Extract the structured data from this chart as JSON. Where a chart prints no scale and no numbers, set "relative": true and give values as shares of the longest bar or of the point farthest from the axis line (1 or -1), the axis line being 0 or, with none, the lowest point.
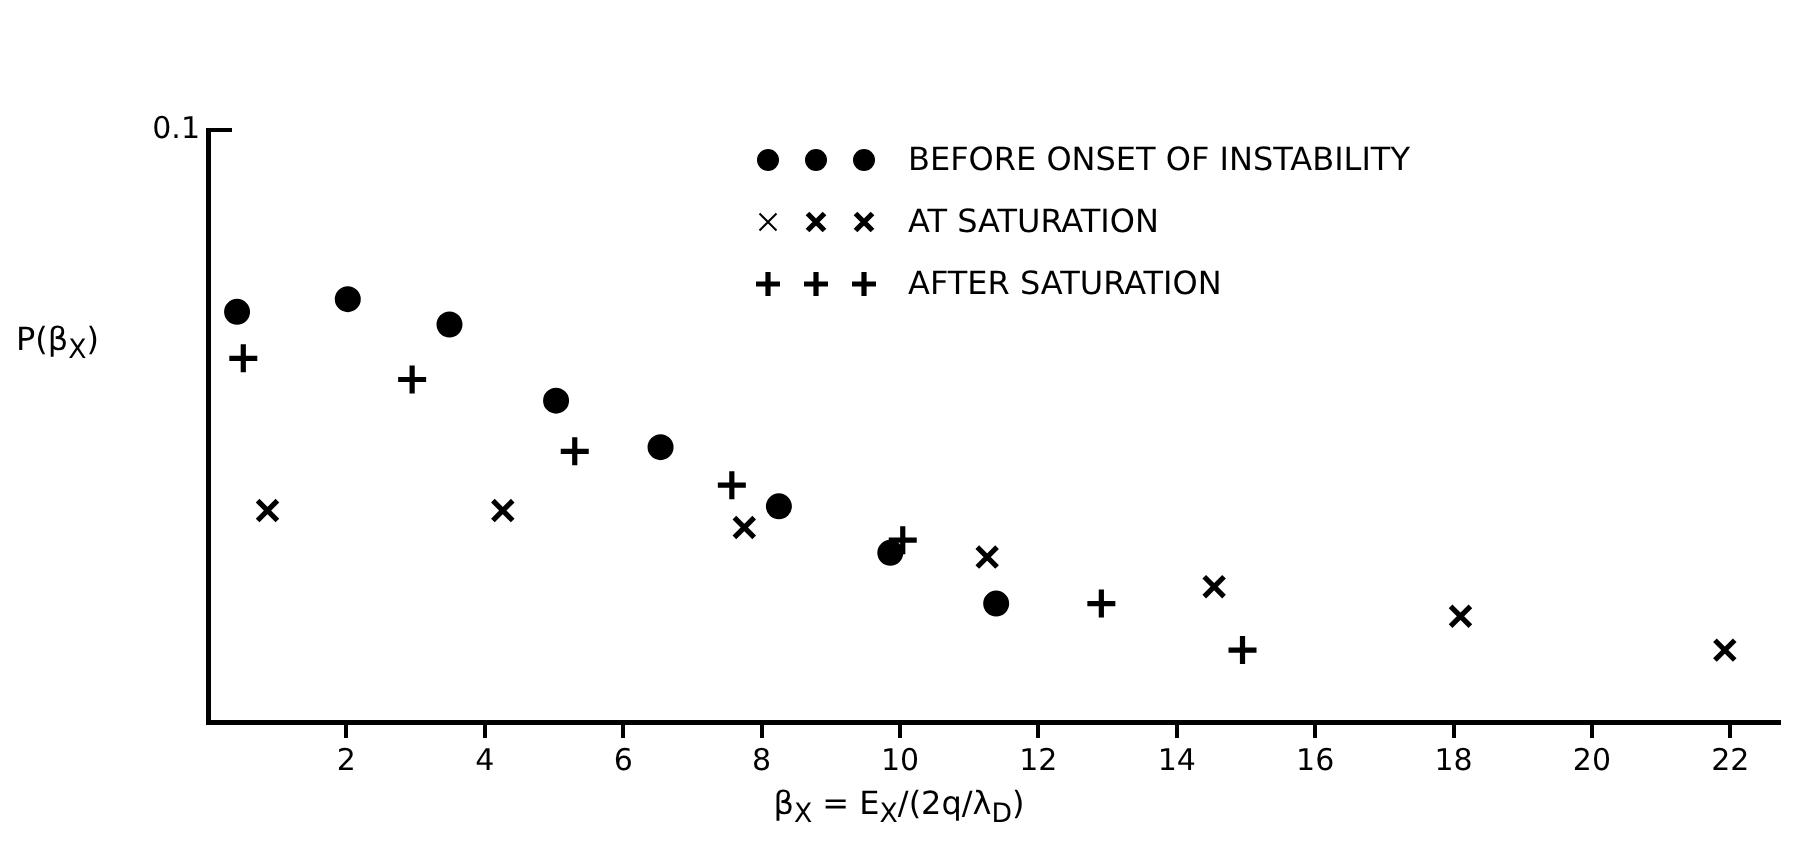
{
  "chart_data": {
    "type": "scatter",
    "relative": true,
    "xlabel": "β$_{X}$ = E$_{X}$/(2q/λ$_{D}$)",
    "ylabel": "P(β$_{X}$)",
    "annotations": [
      "0.1"
    ],
    "xlim": [
      0,
      22.7
    ],
    "xticks": [
      2,
      4,
      6,
      8,
      10,
      12,
      14,
      16,
      18,
      20,
      22
    ],
    "grid": false,
    "legend": "top",
    "series": [
      {
        "name": "BEFORE ONSET OF INSTABILITY",
        "color": "#000000",
        "marker": "circle",
        "x": [
          0.42,
          2.02,
          3.49,
          5.03,
          6.54,
          8.25,
          9.86,
          11.39
        ],
        "values": [
          0.97,
          1.0,
          0.94,
          0.76,
          0.65,
          0.51,
          0.4,
          0.28
        ]
      },
      {
        "name": "AT SATURATION",
        "color": "#000000",
        "marker": "cross",
        "x": [
          0.86,
          4.26,
          7.75,
          11.26,
          14.54,
          18.1,
          21.92
        ],
        "values": [
          0.5,
          0.5,
          0.46,
          0.39,
          0.32,
          0.25,
          0.17
        ]
      },
      {
        "name": "AFTER SATURATION",
        "color": "#000000",
        "marker": "plus",
        "x": [
          0.51,
          2.95,
          5.3,
          7.57,
          10.04,
          12.91,
          14.95
        ],
        "values": [
          0.86,
          0.81,
          0.64,
          0.56,
          0.43,
          0.28,
          0.17
        ]
      }
    ]
  }
}
